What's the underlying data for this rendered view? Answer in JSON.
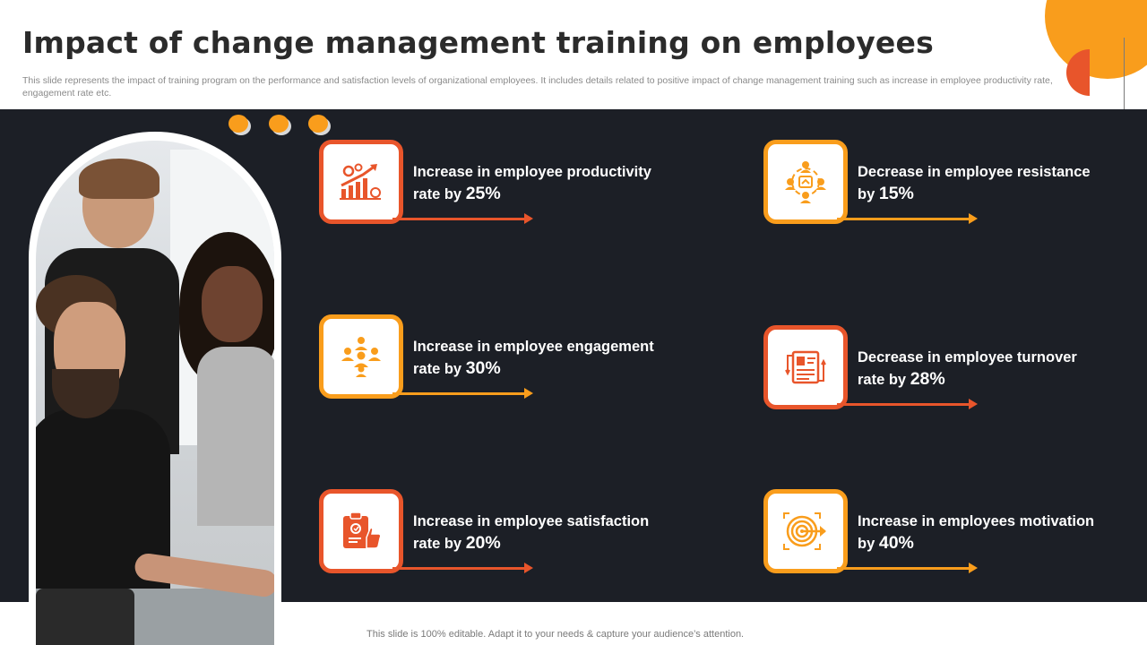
{
  "slide": {
    "title": "Impact of change management training on employees",
    "subtitle": "This slide represents the impact of training program on the performance and satisfaction levels of organizational employees. It includes details related to positive impact of change management training such as increase in employee productivity rate, engagement rate etc.",
    "footer": "This slide is 100% editable. Adapt it to your needs & capture your audience’s attention."
  },
  "colors": {
    "accent_orange": "#e8552b",
    "accent_yellow": "#f99d1c",
    "band": "#1c1f26"
  },
  "items": [
    {
      "text": "Increase in employee productivity rate by",
      "value": "25%",
      "icon": "growth-chart-icon",
      "color": "orange"
    },
    {
      "text": "Increase in employee engagement rate by",
      "value": "30%",
      "icon": "team-group-icon",
      "color": "yellow"
    },
    {
      "text": "Increase in employee satisfaction rate by",
      "value": "20%",
      "icon": "thumbs-up-clipboard-icon",
      "color": "orange"
    },
    {
      "text": "Decrease in employee resistance by",
      "value": "15%",
      "icon": "people-cycle-icon",
      "color": "yellow"
    },
    {
      "text": "Decrease in employee turnover rate by",
      "value": "28%",
      "icon": "resume-exchange-icon",
      "color": "orange"
    },
    {
      "text": "Increase in employees motivation by",
      "value": "40%",
      "icon": "target-dart-icon",
      "color": "yellow"
    }
  ]
}
